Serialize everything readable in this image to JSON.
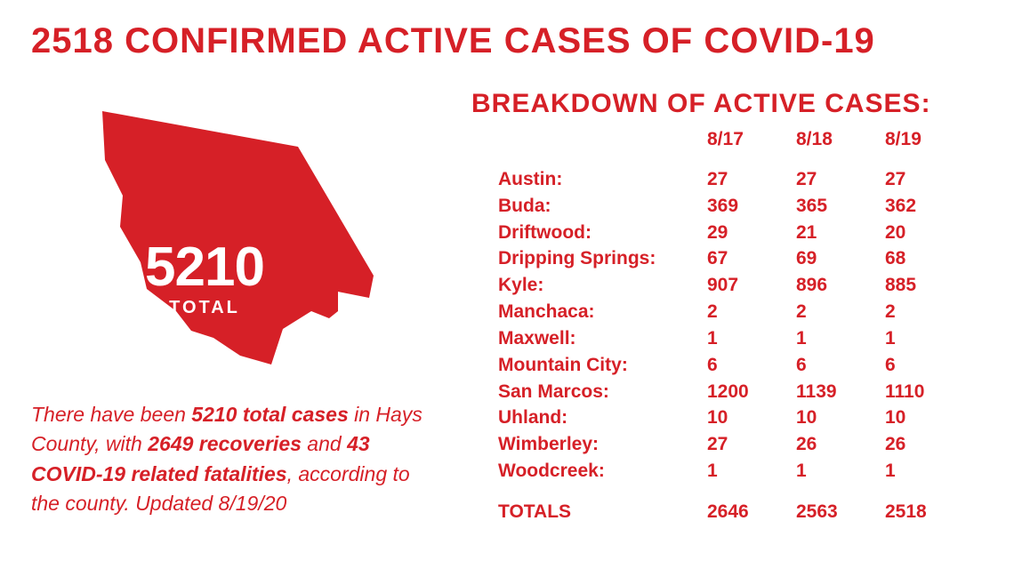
{
  "colors": {
    "accent": "#d62027",
    "text": "#d62027",
    "map_fill": "#d62027",
    "map_text": "#ffffff",
    "background": "#ffffff"
  },
  "headline": "2518 CONFIRMED ACTIVE CASES OF COVID-19",
  "map": {
    "total_number": "5210",
    "total_label": "TOTAL"
  },
  "summary": {
    "prefix": "There have been ",
    "total_cases": "5210 total cases",
    "mid1": " in Hays County, with ",
    "recoveries": "2649 recoveries",
    "mid2": " and ",
    "fatalities": "43 COVID-19 related fatalities",
    "suffix": ", according to the county. Updated 8/19/20"
  },
  "breakdown": {
    "title": "BREAKDOWN OF ACTIVE CASES:",
    "dates": [
      "8/17",
      "8/18",
      "8/19"
    ],
    "rows": [
      {
        "city": "Austin:",
        "vals": [
          "27",
          "27",
          "27"
        ]
      },
      {
        "city": "Buda:",
        "vals": [
          "369",
          "365",
          "362"
        ]
      },
      {
        "city": "Driftwood:",
        "vals": [
          "29",
          "21",
          "20"
        ]
      },
      {
        "city": "Dripping Springs:",
        "vals": [
          "67",
          "69",
          "68"
        ]
      },
      {
        "city": "Kyle:",
        "vals": [
          "907",
          "896",
          "885"
        ]
      },
      {
        "city": "Manchaca:",
        "vals": [
          "2",
          "2",
          "2"
        ]
      },
      {
        "city": "Maxwell:",
        "vals": [
          "1",
          "1",
          "1"
        ]
      },
      {
        "city": "Mountain City:",
        "vals": [
          "6",
          "6",
          "6"
        ]
      },
      {
        "city": "San Marcos:",
        "vals": [
          "1200",
          "1139",
          "1110"
        ]
      },
      {
        "city": "Uhland:",
        "vals": [
          "10",
          "10",
          "10"
        ]
      },
      {
        "city": "Wimberley:",
        "vals": [
          "27",
          "26",
          "26"
        ]
      },
      {
        "city": "Woodcreek:",
        "vals": [
          "1",
          "1",
          "1"
        ]
      }
    ],
    "totals": {
      "label": "TOTALS",
      "vals": [
        "2646",
        "2563",
        "2518"
      ]
    }
  }
}
